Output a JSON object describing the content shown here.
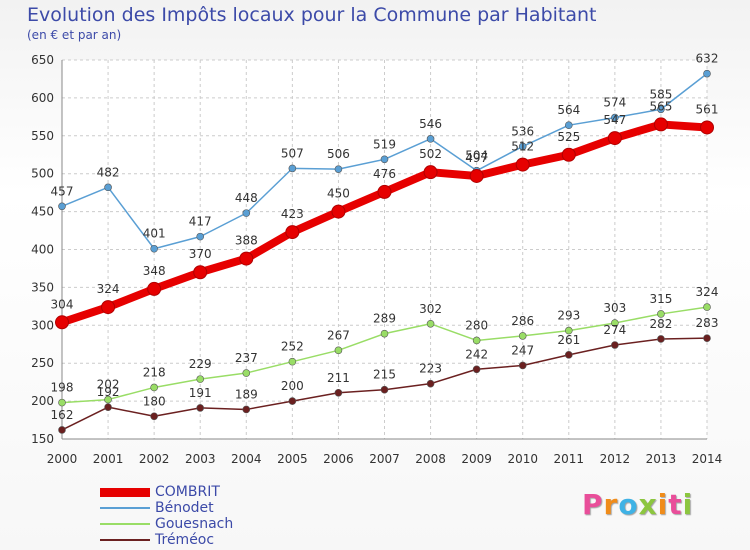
{
  "title": "Evolution des Impôts locaux pour la Commune par Habitant",
  "subtitle": "(en € et par an)",
  "logo": {
    "letters": [
      "P",
      "r",
      "o",
      "x",
      "i",
      "t",
      "i"
    ],
    "colors": [
      "#e94e9a",
      "#f08c1a",
      "#3fb2e5",
      "#8cc63f",
      "#f08c1a",
      "#e94e9a",
      "#8cc63f"
    ]
  },
  "chart_data": {
    "type": "line",
    "x": [
      2000,
      2001,
      2002,
      2003,
      2004,
      2005,
      2006,
      2007,
      2008,
      2009,
      2010,
      2011,
      2012,
      2013,
      2014
    ],
    "ylim": [
      150,
      650
    ],
    "yticks": [
      150,
      200,
      250,
      300,
      350,
      400,
      450,
      500,
      550,
      600,
      650
    ],
    "grid": true,
    "legend_position": "bottom-left",
    "series": [
      {
        "name": "COMBRIT",
        "color": "#e60000",
        "values": [
          304,
          324,
          348,
          370,
          388,
          423,
          450,
          476,
          502,
          497,
          512,
          525,
          547,
          565,
          561
        ]
      },
      {
        "name": "Bénodet",
        "color": "#5a9fd4",
        "values": [
          457,
          482,
          401,
          417,
          448,
          507,
          506,
          519,
          546,
          504,
          536,
          564,
          574,
          585,
          632
        ]
      },
      {
        "name": "Gouesnach",
        "color": "#99dd66",
        "values": [
          198,
          202,
          218,
          229,
          237,
          252,
          267,
          289,
          302,
          280,
          286,
          293,
          303,
          315,
          324
        ]
      },
      {
        "name": "Tréméoc",
        "color": "#6b2020",
        "values": [
          162,
          192,
          180,
          191,
          189,
          200,
          211,
          215,
          223,
          242,
          247,
          261,
          274,
          282,
          283
        ]
      }
    ]
  }
}
